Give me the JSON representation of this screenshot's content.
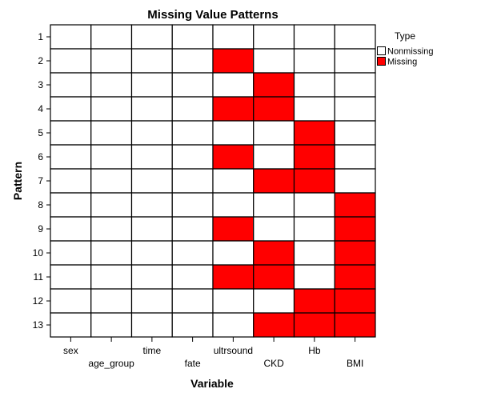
{
  "chart_data": {
    "type": "heatmap",
    "title": "Missing Value Patterns",
    "xlabel": "Variable",
    "ylabel": "Pattern",
    "variables": [
      "sex",
      "age_group",
      "time",
      "fate",
      "ultrsound",
      "CKD",
      "Hb",
      "BMI"
    ],
    "patterns": [
      "1",
      "2",
      "3",
      "4",
      "5",
      "6",
      "7",
      "8",
      "9",
      "10",
      "11",
      "12",
      "13"
    ],
    "matrix": [
      [
        0,
        0,
        0,
        0,
        0,
        0,
        0,
        0
      ],
      [
        0,
        0,
        0,
        0,
        1,
        0,
        0,
        0
      ],
      [
        0,
        0,
        0,
        0,
        0,
        1,
        0,
        0
      ],
      [
        0,
        0,
        0,
        0,
        1,
        1,
        0,
        0
      ],
      [
        0,
        0,
        0,
        0,
        0,
        0,
        1,
        0
      ],
      [
        0,
        0,
        0,
        0,
        1,
        0,
        1,
        0
      ],
      [
        0,
        0,
        0,
        0,
        0,
        1,
        1,
        0
      ],
      [
        0,
        0,
        0,
        0,
        0,
        0,
        0,
        1
      ],
      [
        0,
        0,
        0,
        0,
        1,
        0,
        0,
        1
      ],
      [
        0,
        0,
        0,
        0,
        0,
        1,
        0,
        1
      ],
      [
        0,
        0,
        0,
        0,
        1,
        1,
        0,
        1
      ],
      [
        0,
        0,
        0,
        0,
        0,
        0,
        1,
        1
      ],
      [
        0,
        0,
        0,
        0,
        0,
        1,
        1,
        1
      ]
    ],
    "legend": {
      "title": "Type",
      "position": "right",
      "entries": [
        {
          "label": "Nonmissing",
          "color": "#ffffff"
        },
        {
          "label": "Missing",
          "color": "#ff0000"
        }
      ]
    },
    "colors": {
      "missing": "#ff0000",
      "nonmissing": "#ffffff",
      "grid": "#000000"
    }
  }
}
